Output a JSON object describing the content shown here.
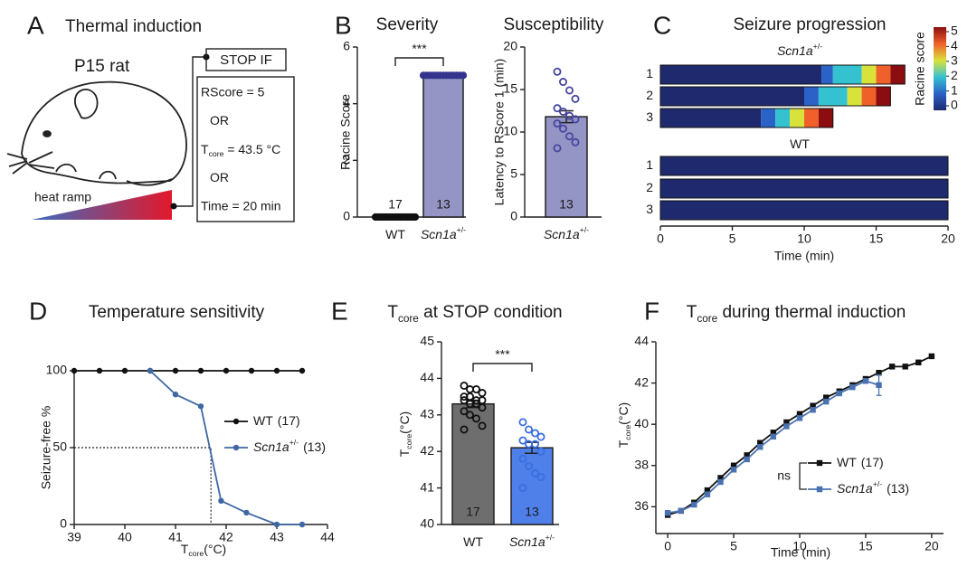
{
  "diagram": {
    "panel": "A",
    "title": "Thermal induction",
    "subject": "P15 rat",
    "ramp_label": "heat ramp",
    "stop_label": "STOP IF",
    "conditions": [
      "RScore = 5",
      "OR",
      [
        {
          "text": "T"
        },
        {
          "text": "core",
          "sub": true
        },
        {
          "text": " = 43.5 °C"
        }
      ],
      "OR",
      "Time = 20 min"
    ]
  },
  "chart_data": [
    {
      "type": "bar",
      "panel": "B",
      "title": "Severity",
      "ylabel": "Racine Score",
      "categories": [
        "WT",
        "Scn1a"
      ],
      "category_superscripts": [
        null,
        "+/-"
      ],
      "values": [
        0,
        5
      ],
      "colors": [
        "#222222",
        "#9495c4"
      ],
      "point_style": "filled",
      "point_colors": [
        "#111111",
        "#34348f"
      ],
      "points": [
        [
          0,
          0,
          0,
          0,
          0,
          0,
          0,
          0,
          0,
          0,
          0,
          0,
          0,
          0,
          0,
          0,
          0
        ],
        [
          5,
          5,
          5,
          5,
          5,
          5,
          5,
          5,
          5,
          5,
          5,
          5,
          5
        ]
      ],
      "n_labels": [
        17,
        13
      ],
      "significance": "***",
      "ylim": [
        0,
        6
      ],
      "yticks": [
        0,
        2,
        4,
        6
      ]
    },
    {
      "type": "bar",
      "title": "Susceptibility",
      "ylabel": "Latency to RScore 1 (min)",
      "categories": [
        "Scn1a"
      ],
      "category_superscripts": [
        "+/-"
      ],
      "values": [
        11.8
      ],
      "errors": [
        0.7
      ],
      "colors": [
        "#9495c4"
      ],
      "point_style": "hollow",
      "point_colors": [
        "#4646a0"
      ],
      "points": [
        [
          17.1,
          15.9,
          14.9,
          13.9,
          12.8,
          12.4,
          11.9,
          11.5,
          11.0,
          10.4,
          9.5,
          8.8,
          8.1
        ]
      ],
      "n_labels": [
        13
      ],
      "ylim": [
        0,
        20
      ],
      "yticks": [
        0,
        5,
        10,
        15,
        20
      ]
    },
    {
      "type": "heatmap",
      "panel": "C",
      "title": "Seizure progression",
      "xlabel": "Time (min)",
      "xlim": [
        0,
        20
      ],
      "xticks": [
        0,
        5,
        10,
        15,
        20
      ],
      "colorbar_label": "Racine score",
      "colorbar_ticks": [
        0,
        1,
        2,
        3,
        4,
        5
      ],
      "colors": [
        "#1f2a6e",
        "#2a62c8",
        "#35c2d0",
        "#d9e23a",
        "#f0602a",
        "#8b0d10"
      ],
      "groups": [
        {
          "name": "Scn1a",
          "superscript": "+/-",
          "rows": [
            {
              "label": "1",
              "segments": [
                {
                  "score": 0,
                  "start": 0,
                  "end": 11.2
                },
                {
                  "score": 1,
                  "start": 11.2,
                  "end": 12
                },
                {
                  "score": 2,
                  "start": 12,
                  "end": 14
                },
                {
                  "score": 3,
                  "start": 14,
                  "end": 15
                },
                {
                  "score": 4,
                  "start": 15,
                  "end": 16
                },
                {
                  "score": 5,
                  "start": 16,
                  "end": 17
                }
              ]
            },
            {
              "label": "2",
              "segments": [
                {
                  "score": 0,
                  "start": 0,
                  "end": 10
                },
                {
                  "score": 1,
                  "start": 10,
                  "end": 11
                },
                {
                  "score": 2,
                  "start": 11,
                  "end": 13
                },
                {
                  "score": 3,
                  "start": 13,
                  "end": 14
                },
                {
                  "score": 4,
                  "start": 14,
                  "end": 15
                },
                {
                  "score": 5,
                  "start": 15,
                  "end": 16
                }
              ]
            },
            {
              "label": "3",
              "segments": [
                {
                  "score": 0,
                  "start": 0,
                  "end": 7
                },
                {
                  "score": 1,
                  "start": 7,
                  "end": 8
                },
                {
                  "score": 2,
                  "start": 8,
                  "end": 9
                },
                {
                  "score": 3,
                  "start": 9,
                  "end": 10
                },
                {
                  "score": 4,
                  "start": 10,
                  "end": 11
                },
                {
                  "score": 5,
                  "start": 11,
                  "end": 12
                }
              ]
            }
          ]
        },
        {
          "name": "WT",
          "rows": [
            {
              "label": "1",
              "segments": [
                {
                  "score": 0,
                  "start": 0,
                  "end": 20
                }
              ]
            },
            {
              "label": "2",
              "segments": [
                {
                  "score": 0,
                  "start": 0,
                  "end": 20
                }
              ]
            },
            {
              "label": "3",
              "segments": [
                {
                  "score": 0,
                  "start": 0,
                  "end": 20
                }
              ]
            }
          ]
        }
      ]
    },
    {
      "type": "line",
      "panel": "D",
      "title": "Temperature sensitivity",
      "ylabel": "Seizure-free %",
      "xlabel": [
        {
          "text": "T"
        },
        {
          "text": "core",
          "sub": true
        },
        {
          "text": "(°C)"
        }
      ],
      "xlim": [
        39,
        44
      ],
      "xticks": [
        39,
        40,
        41,
        42,
        43,
        44
      ],
      "ylim": [
        0,
        100
      ],
      "yticks": [
        0,
        50,
        100
      ],
      "guide": {
        "x": 41.7,
        "y": 50
      },
      "series": [
        {
          "name": "WT",
          "count": "(17)",
          "color": "#111111",
          "marker": "circle",
          "x": [
            39,
            39.5,
            40,
            40.5,
            41,
            41.5,
            42,
            42.5,
            43,
            43.5
          ],
          "values": [
            100,
            100,
            100,
            100,
            100,
            100,
            100,
            100,
            100,
            100
          ]
        },
        {
          "name": "Scn1a",
          "superscript": "+/-",
          "count": "(13)",
          "color": "#3f67a3",
          "marker": "circle",
          "x": [
            40.5,
            41,
            41.5,
            41.9,
            42.4,
            43,
            43.5
          ],
          "values": [
            100,
            84.6,
            76.9,
            15.4,
            7.7,
            0,
            0
          ]
        }
      ]
    },
    {
      "type": "bar",
      "panel": "E",
      "title": [
        {
          "text": "T"
        },
        {
          "text": "core",
          "sub": true
        },
        {
          "text": " at STOP condition"
        }
      ],
      "ylabel": [
        {
          "text": "T"
        },
        {
          "text": "core",
          "sub": true
        },
        {
          "text": "(°C)"
        }
      ],
      "categories": [
        "WT",
        "Scn1a"
      ],
      "category_superscripts": [
        null,
        "+/-"
      ],
      "values": [
        43.3,
        42.1
      ],
      "errors": [
        0.1,
        0.15
      ],
      "colors": [
        "#6e6e6e",
        "#4f7fe8"
      ],
      "point_style": "hollow",
      "point_colors": [
        "#111111",
        "#3a6fe0"
      ],
      "points": [
        [
          43.8,
          43.7,
          43.7,
          43.6,
          43.5,
          43.5,
          43.4,
          43.4,
          43.4,
          43.3,
          43.3,
          43.2,
          43.1,
          43.0,
          42.9,
          42.7,
          42.6
        ],
        [
          42.8,
          42.6,
          42.5,
          42.4,
          42.3,
          42.2,
          42.2,
          42.0,
          41.8,
          41.6,
          41.4,
          41.3,
          41.0
        ]
      ],
      "n_labels": [
        17,
        13
      ],
      "significance": "***",
      "ylim": [
        40,
        45
      ],
      "yticks": [
        40,
        41,
        42,
        43,
        44,
        45
      ]
    },
    {
      "type": "line",
      "panel": "F",
      "title": [
        {
          "text": "T"
        },
        {
          "text": "core",
          "sub": true
        },
        {
          "text": " during thermal induction"
        }
      ],
      "ylabel": [
        {
          "text": "T"
        },
        {
          "text": "core",
          "sub": true
        },
        {
          "text": "(°C)"
        }
      ],
      "xlabel": "Time (min)",
      "annotation": "ns",
      "xlim": [
        -0.9,
        20.9
      ],
      "xticks": [
        0,
        5,
        10,
        15,
        20
      ],
      "ylim": [
        34.7,
        44
      ],
      "yticks": [
        36,
        38,
        40,
        42,
        44
      ],
      "series": [
        {
          "name": "WT",
          "count": "(17)",
          "color": "#111111",
          "marker": "square",
          "x": [
            0,
            1,
            2,
            3,
            4,
            5,
            6,
            7,
            8,
            9,
            10,
            11,
            12,
            13,
            14,
            15,
            16,
            17,
            18,
            19,
            20
          ],
          "values": [
            35.6,
            35.8,
            36.2,
            36.8,
            37.4,
            38.0,
            38.5,
            39.1,
            39.6,
            40.1,
            40.5,
            40.9,
            41.3,
            41.6,
            41.9,
            42.2,
            42.5,
            42.8,
            42.8,
            43.0,
            43.3
          ],
          "errors": [
            0.1,
            0.1,
            0.1,
            0.1,
            0.1,
            0.1,
            0.1,
            0.1,
            0.1,
            0.1,
            0.1,
            0.1,
            0.1,
            0.1,
            0.1,
            0.1,
            0.1,
            0.1,
            0.1,
            0.1,
            0.1
          ]
        },
        {
          "name": "Scn1a",
          "superscript": "+/-",
          "count": "(13)",
          "color": "#4a72b0",
          "marker": "square",
          "x": [
            0,
            1,
            2,
            3,
            4,
            5,
            6,
            7,
            8,
            9,
            10,
            11,
            12,
            13,
            14,
            15,
            16
          ],
          "values": [
            35.7,
            35.8,
            36.1,
            36.6,
            37.2,
            37.8,
            38.3,
            38.9,
            39.4,
            39.9,
            40.3,
            40.7,
            41.1,
            41.5,
            41.8,
            42.1,
            41.9
          ],
          "errors": [
            0.1,
            0.1,
            0.1,
            0.1,
            0.1,
            0.1,
            0.1,
            0.1,
            0.1,
            0.1,
            0.1,
            0.1,
            0.1,
            0.1,
            0.1,
            0.1,
            0.5
          ]
        }
      ]
    }
  ]
}
